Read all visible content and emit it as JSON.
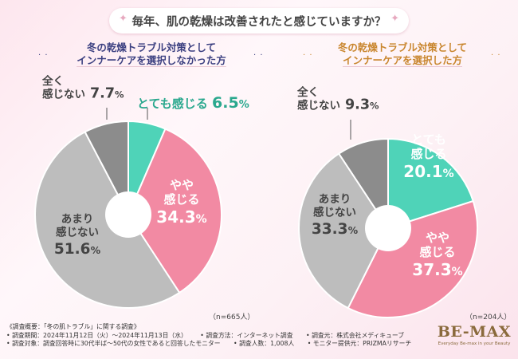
{
  "title": "毎年、肌の乾燥は改善されたと感じていますか？",
  "chart_data": [
    {
      "type": "pie",
      "title_lines": [
        "冬の乾燥トラブル対策として",
        "インナーケアを選択しなかった方"
      ],
      "sample": "（n=665人）",
      "slices": [
        {
          "lines": [
            "とても感じる"
          ],
          "value": 6.5,
          "color": "#4fd3b8"
        },
        {
          "lines": [
            "やや",
            "感じる"
          ],
          "value": 34.3,
          "color": "#f28aa3"
        },
        {
          "lines": [
            "あまり",
            "感じない"
          ],
          "value": 51.6,
          "color": "#bdbdbd"
        },
        {
          "lines": [
            "全く",
            "感じない"
          ],
          "value": 7.7,
          "color": "#8c8c8c"
        }
      ]
    },
    {
      "type": "pie",
      "title_lines": [
        "冬の乾燥トラブル対策として",
        "インナーケアを選択した方"
      ],
      "sample": "（n=204人）",
      "slices": [
        {
          "lines": [
            "とても",
            "感じる"
          ],
          "value": 20.1,
          "color": "#4fd3b8"
        },
        {
          "lines": [
            "やや",
            "感じる"
          ],
          "value": 37.3,
          "color": "#f28aa3"
        },
        {
          "lines": [
            "あまり",
            "感じない"
          ],
          "value": 33.3,
          "color": "#bdbdbd"
        },
        {
          "lines": [
            "全く",
            "感じない"
          ],
          "value": 9.3,
          "color": "#8c8c8c"
        }
      ]
    }
  ],
  "footer": {
    "heading": "《調査概要：「冬の肌トラブル」に関する調査》",
    "items": [
      "• 調査期間：2024年11月12日（火）～2024年11月13日（水）",
      "• 調査方法：インターネット調査",
      "• 調査元：株式会社メディキューブ",
      "• 調査対象：調査回答時に30代半ば～50代の女性であると回答したモニター",
      "• 調査人数：1,008人",
      "• モニター提供元：PRIZMAリサーチ"
    ]
  },
  "logo": {
    "brand": "BE-MAX",
    "tagline": "Everyday Be-max in your Beauty"
  }
}
